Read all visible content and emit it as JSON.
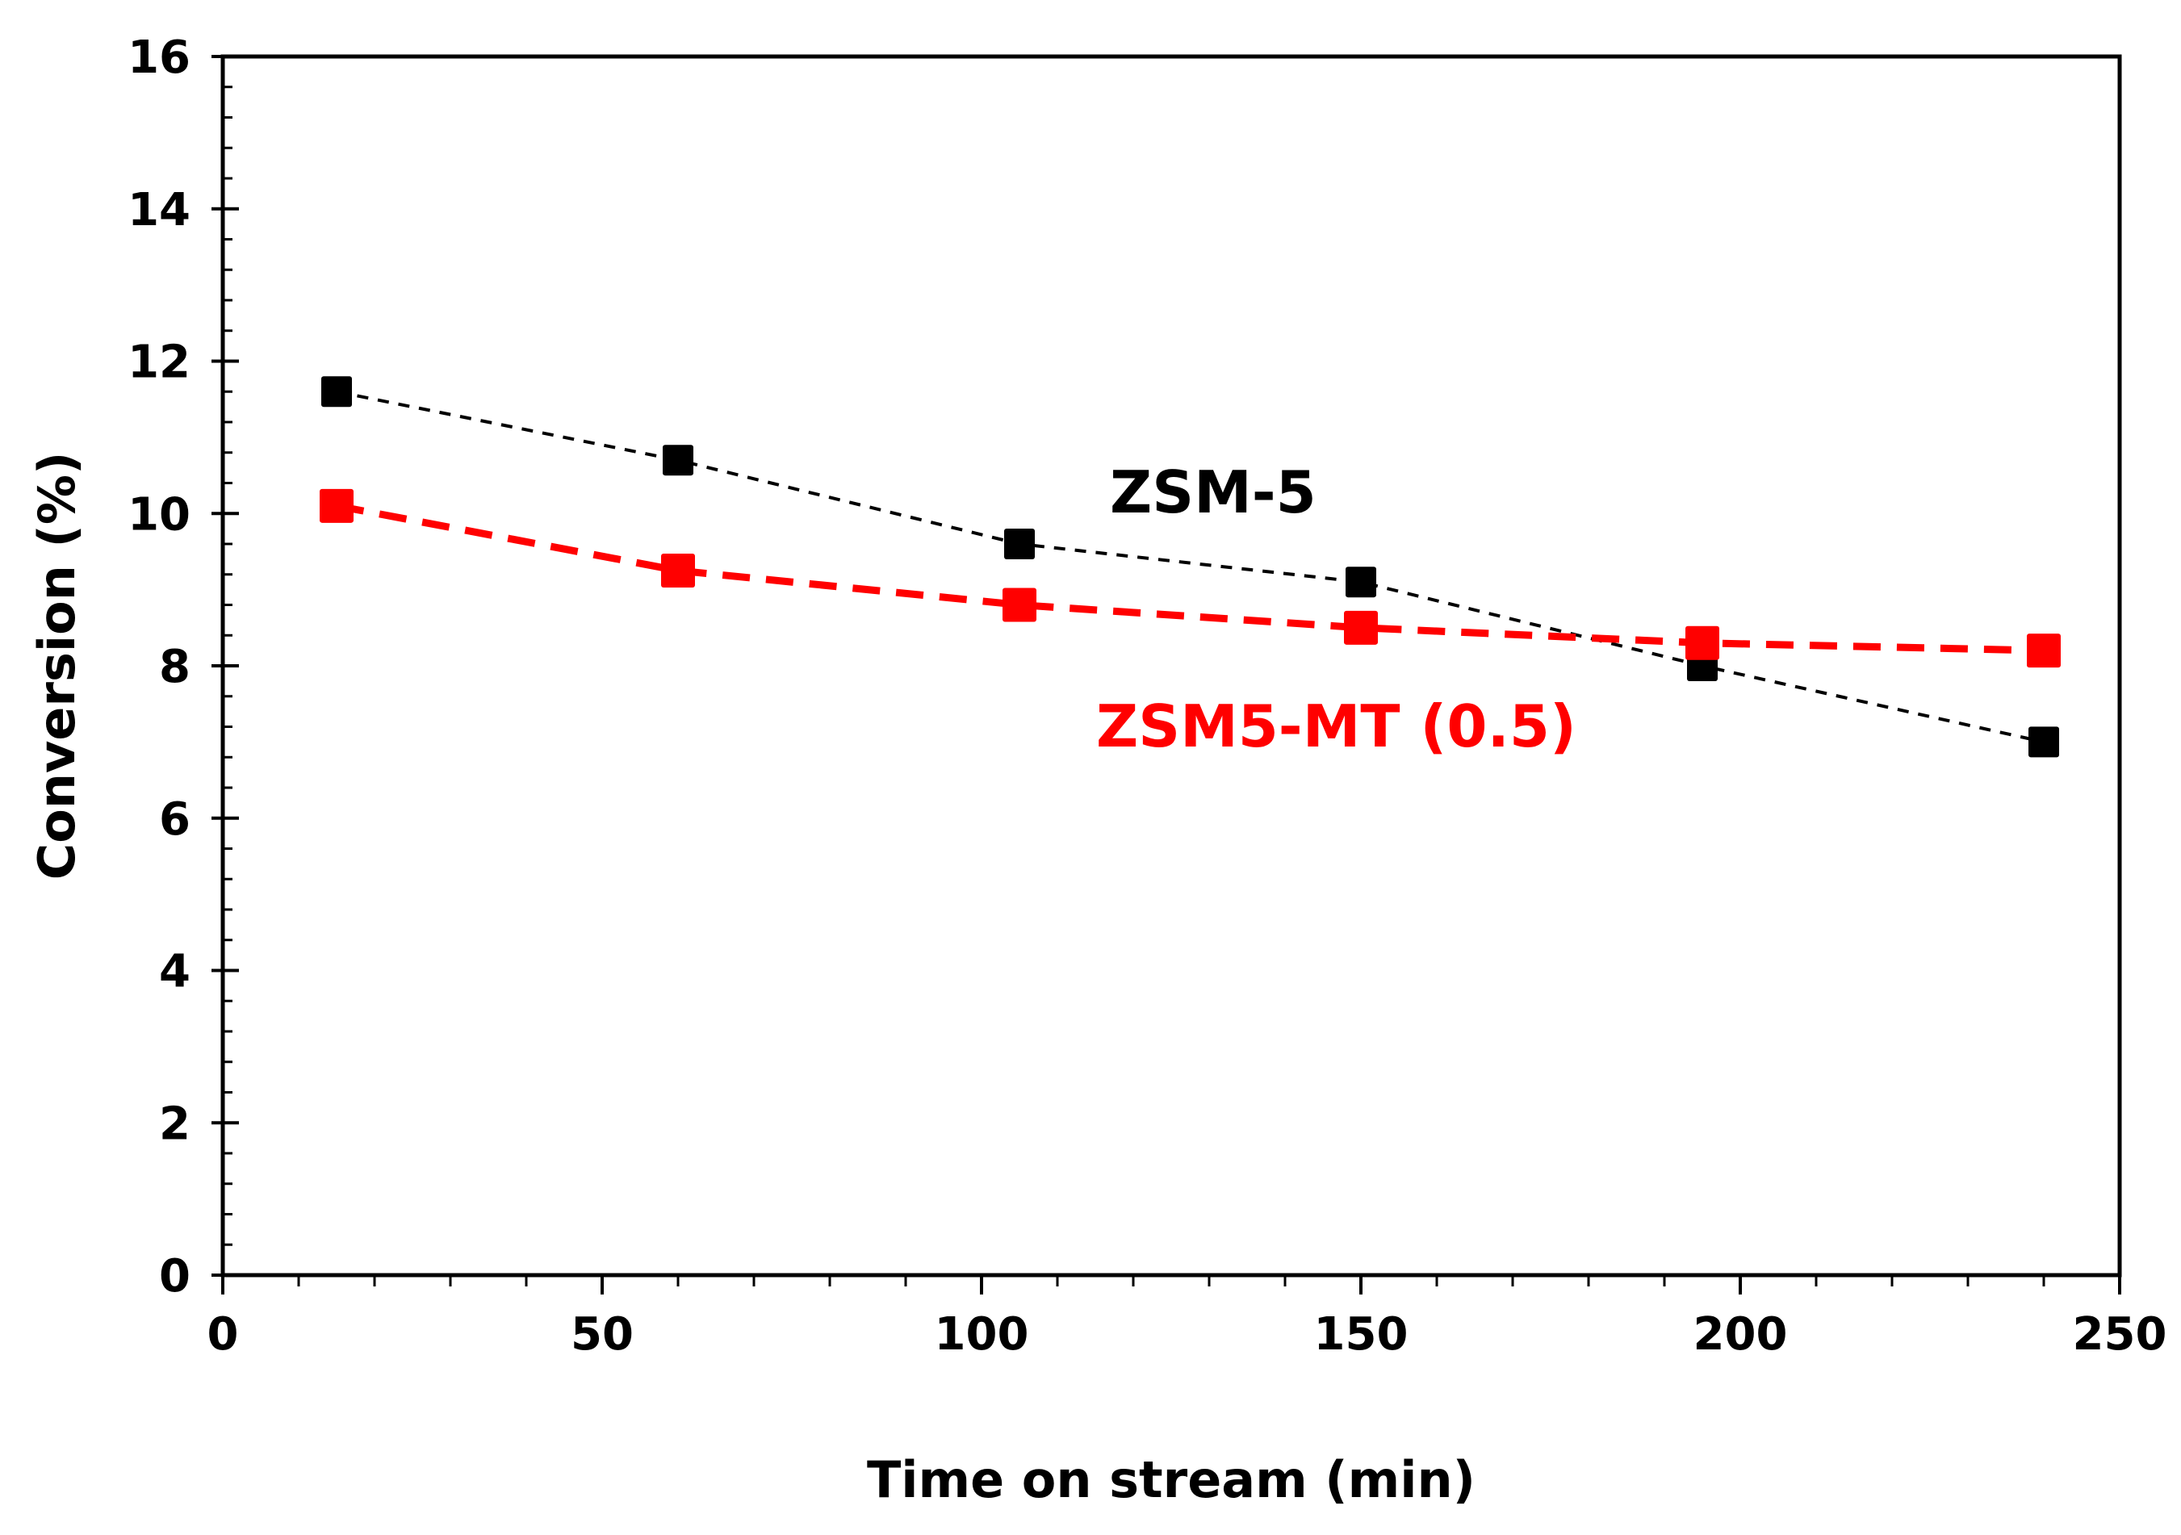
{
  "chart_data": {
    "type": "line",
    "title": "",
    "xlabel": "Time on stream (min)",
    "ylabel": "Conversion (%)",
    "xlim": [
      0,
      250
    ],
    "ylim": [
      0,
      16
    ],
    "x_major_ticks": [
      0,
      50,
      100,
      150,
      200,
      250
    ],
    "x_tick_labels": [
      "0",
      "50",
      "100",
      "150",
      "200",
      "250"
    ],
    "x_minor_step": 10,
    "y_major_ticks": [
      0,
      2,
      4,
      6,
      8,
      10,
      12,
      14,
      16
    ],
    "y_tick_labels": [
      "0",
      "2",
      "4",
      "6",
      "8",
      "10",
      "12",
      "14",
      "16"
    ],
    "y_minor_step": 0.4,
    "grid": false,
    "legend": "none (series labeled inline)",
    "x": [
      15,
      60,
      105,
      150,
      195,
      240
    ],
    "series": [
      {
        "name": "ZSM-5",
        "label": "ZSM-5",
        "color": "#000000",
        "line_style": "dotted-dash",
        "marker": "square",
        "values": [
          11.6,
          10.7,
          9.6,
          9.1,
          8.0,
          7.0
        ]
      },
      {
        "name": "ZSM5-MT (0.5)",
        "label": "ZSM5-MT (0.5)",
        "color": "#ff0000",
        "line_style": "dashed",
        "marker": "square",
        "values": [
          10.1,
          9.25,
          8.8,
          8.5,
          8.3,
          8.2
        ]
      }
    ]
  }
}
